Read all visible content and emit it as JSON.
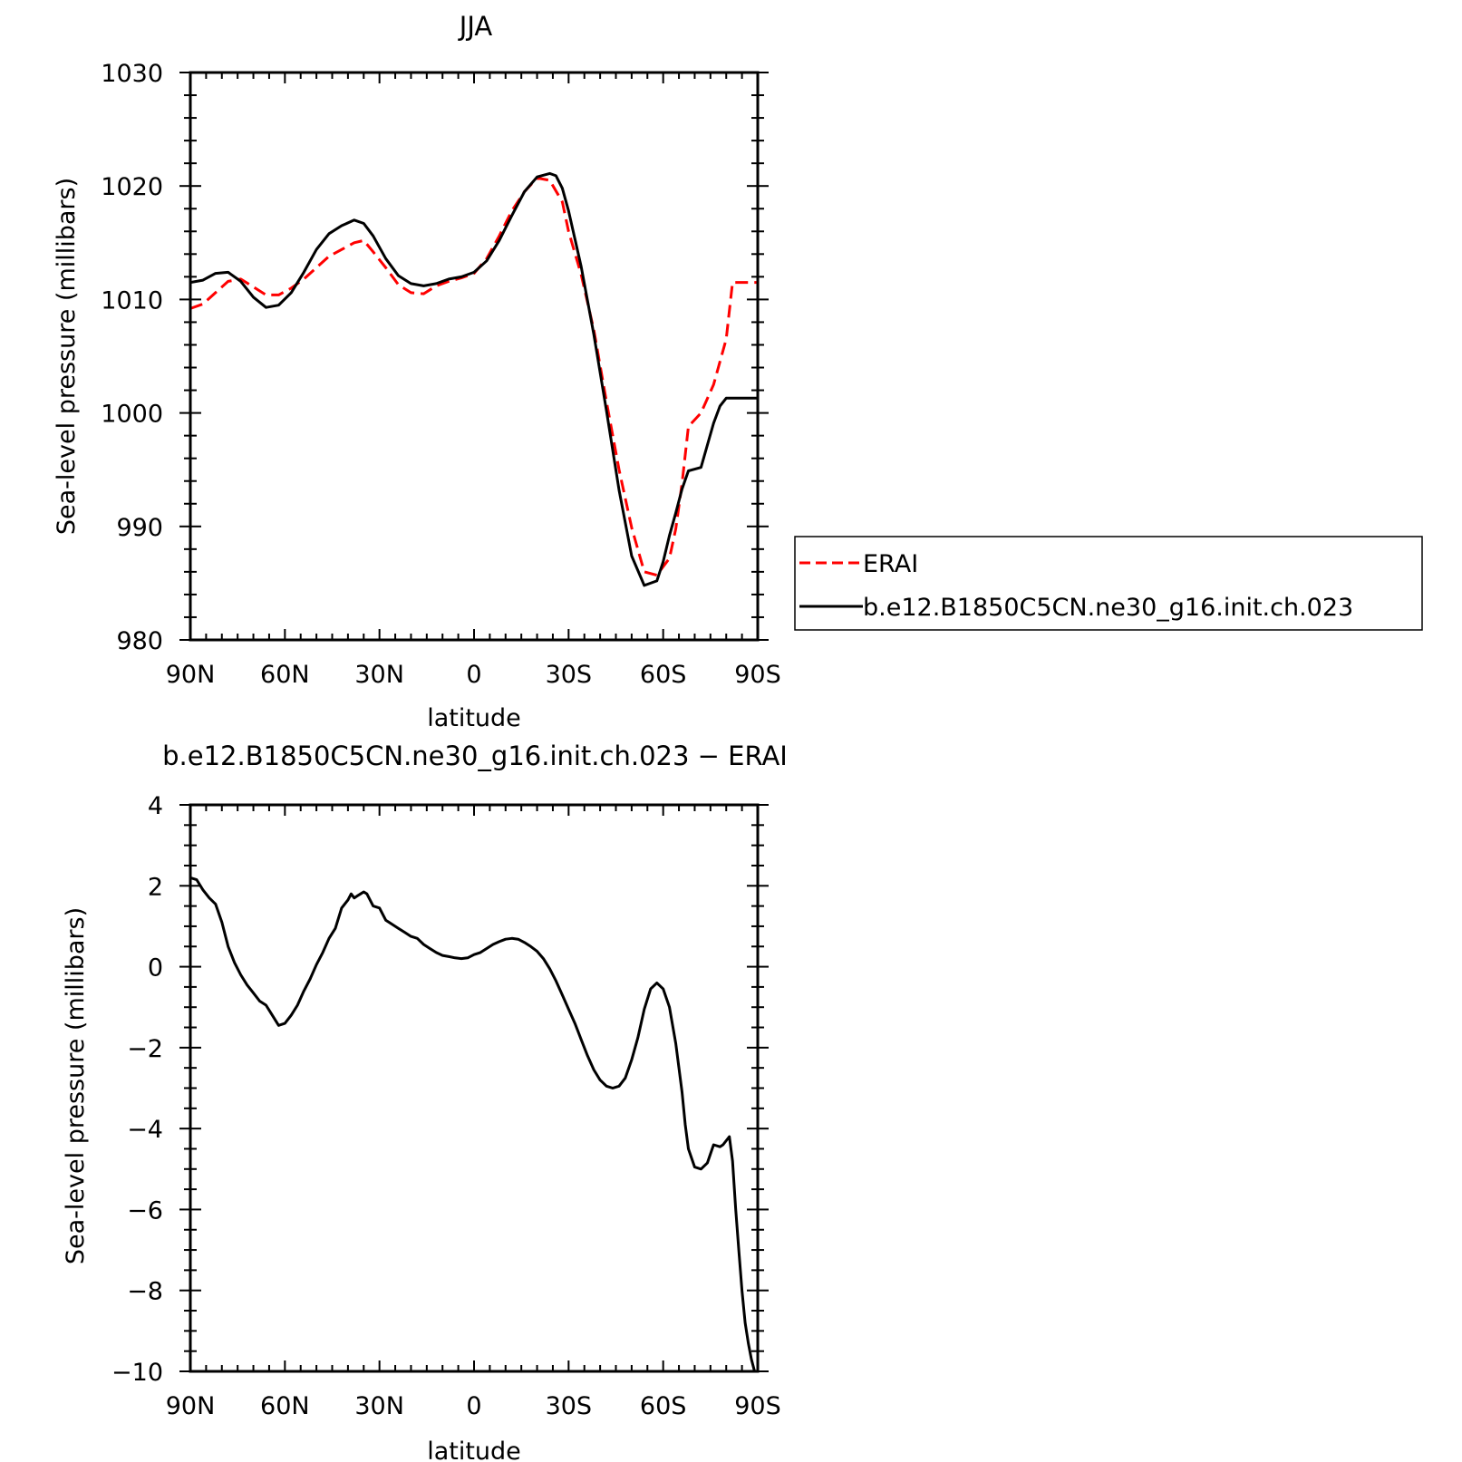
{
  "colors": {
    "ERAI": "#ff0000",
    "model": "#000000"
  },
  "legend": {
    "entries": [
      "ERAI",
      "b.e12.B1850C5CN.ne30_g16.init.ch.023"
    ],
    "placement": "right of top panel"
  },
  "chart_data": [
    {
      "type": "line",
      "title": "JJA",
      "xlabel": "latitude",
      "ylabel": "Sea-level pressure (millibars)",
      "xlim": [
        90,
        -90
      ],
      "ylim": [
        980,
        1030
      ],
      "xticks": [
        90,
        60,
        30,
        0,
        -30,
        -60,
        -90
      ],
      "xticklabels": [
        "90N",
        "60N",
        "30N",
        "0",
        "30S",
        "60S",
        "90S"
      ],
      "yticks": [
        980,
        990,
        1000,
        1010,
        1020,
        1030
      ],
      "yticklabels": [
        "980",
        "990",
        "1000",
        "1010",
        "1020",
        "1030"
      ],
      "series": [
        {
          "name": "ERAI",
          "style": "dashed",
          "x": [
            90,
            86,
            82,
            78,
            74,
            70,
            66,
            62,
            58,
            54,
            50,
            46,
            42,
            38,
            35,
            32,
            28,
            24,
            20,
            16,
            12,
            8,
            4,
            0,
            -4,
            -8,
            -12,
            -16,
            -20,
            -24,
            -28,
            -30,
            -34,
            -38,
            -42,
            -46,
            -50,
            -54,
            -58,
            -62,
            -64,
            -66,
            -68,
            -72,
            -76,
            -80,
            -82,
            -84,
            -86,
            -88,
            -90
          ],
          "y": [
            1009.2,
            1009.6,
            1010.6,
            1011.6,
            1011.8,
            1011.1,
            1010.4,
            1010.4,
            1011.0,
            1011.8,
            1012.8,
            1013.8,
            1014.4,
            1015.0,
            1015.2,
            1014.2,
            1012.8,
            1011.3,
            1010.6,
            1010.5,
            1011.2,
            1011.6,
            1011.9,
            1012.3,
            1013.6,
            1015.6,
            1017.8,
            1019.5,
            1020.7,
            1020.5,
            1018.6,
            1016.0,
            1012.2,
            1007.3,
            1001.0,
            995.0,
            989.9,
            986.0,
            985.7,
            987.2,
            989.8,
            993.8,
            998.8,
            1000.0,
            1002.5,
            1006.5,
            1011.5,
            1011.5,
            1011.5,
            1011.5,
            1011.5
          ]
        },
        {
          "name": "b.e12.B1850C5CN.ne30_g16.init.ch.023",
          "style": "solid",
          "x": [
            90,
            86,
            82,
            78,
            74,
            70,
            66,
            62,
            58,
            54,
            50,
            46,
            42,
            38,
            35,
            32,
            28,
            24,
            20,
            16,
            12,
            8,
            4,
            0,
            -4,
            -8,
            -12,
            -16,
            -20,
            -24,
            -26,
            -28,
            -30,
            -34,
            -38,
            -42,
            -46,
            -50,
            -54,
            -58,
            -60,
            -62,
            -64,
            -66,
            -68,
            -72,
            -76,
            -78,
            -80,
            -82,
            -84,
            -86,
            -88,
            -90
          ],
          "y": [
            1011.5,
            1011.7,
            1012.3,
            1012.4,
            1011.6,
            1010.2,
            1009.3,
            1009.5,
            1010.6,
            1012.4,
            1014.4,
            1015.8,
            1016.5,
            1017.0,
            1016.7,
            1015.6,
            1013.6,
            1012.1,
            1011.4,
            1011.2,
            1011.4,
            1011.8,
            1012.0,
            1012.4,
            1013.4,
            1015.2,
            1017.4,
            1019.5,
            1020.8,
            1021.1,
            1020.9,
            1019.8,
            1017.8,
            1012.9,
            1006.9,
            1000.2,
            993.2,
            987.4,
            984.8,
            985.2,
            986.9,
            989.2,
            991.2,
            993.3,
            994.9,
            995.2,
            999.1,
            1000.6,
            1001.3,
            1001.3,
            1001.3,
            1001.3,
            1001.3,
            1001.3
          ]
        }
      ]
    },
    {
      "type": "line",
      "title": "b.e12.B1850C5CN.ne30_g16.init.ch.023 − ERAI",
      "xlabel": "latitude",
      "ylabel": "Sea-level pressure (millibars)",
      "xlim": [
        90,
        -90
      ],
      "ylim": [
        -10,
        4
      ],
      "xticks": [
        90,
        60,
        30,
        0,
        -30,
        -60,
        -90
      ],
      "xticklabels": [
        "90N",
        "60N",
        "30N",
        "0",
        "30S",
        "60S",
        "90S"
      ],
      "yticks": [
        -10,
        -8,
        -6,
        -4,
        -2,
        0,
        2,
        4
      ],
      "yticklabels": [
        "−10",
        "−8",
        "−6",
        "−4",
        "−2",
        "0",
        "2",
        "4"
      ],
      "series": [
        {
          "style": "solid",
          "x": [
            90,
            88,
            86,
            84,
            82,
            80,
            78,
            76,
            74,
            72,
            70,
            68,
            66,
            64,
            62,
            60,
            58,
            56,
            54,
            52,
            50,
            48,
            46,
            44,
            42,
            40,
            39,
            38,
            37,
            36,
            35,
            34,
            32,
            30,
            28,
            26,
            24,
            22,
            20,
            18,
            16,
            14,
            12,
            10,
            8,
            6,
            4,
            2,
            0,
            -2,
            -4,
            -6,
            -8,
            -10,
            -12,
            -14,
            -16,
            -18,
            -20,
            -22,
            -24,
            -26,
            -28,
            -30,
            -32,
            -34,
            -36,
            -38,
            -40,
            -42,
            -44,
            -46,
            -48,
            -50,
            -52,
            -54,
            -56,
            -58,
            -60,
            -62,
            -64,
            -66,
            -67,
            -68,
            -70,
            -72,
            -74,
            -76,
            -78,
            -79,
            -80,
            -81,
            -82,
            -83,
            -84,
            -85,
            -86,
            -87,
            -88,
            -89,
            -90
          ],
          "y": [
            2.2,
            2.15,
            1.9,
            1.7,
            1.55,
            1.1,
            0.5,
            0.1,
            -0.2,
            -0.45,
            -0.65,
            -0.85,
            -0.95,
            -1.2,
            -1.45,
            -1.4,
            -1.2,
            -0.95,
            -0.6,
            -0.3,
            0.05,
            0.35,
            0.7,
            0.95,
            1.45,
            1.65,
            1.8,
            1.7,
            1.75,
            1.8,
            1.85,
            1.8,
            1.5,
            1.45,
            1.15,
            1.05,
            0.95,
            0.85,
            0.75,
            0.7,
            0.55,
            0.45,
            0.35,
            0.28,
            0.25,
            0.22,
            0.2,
            0.22,
            0.3,
            0.35,
            0.45,
            0.55,
            0.62,
            0.68,
            0.7,
            0.68,
            0.6,
            0.5,
            0.38,
            0.2,
            -0.05,
            -0.35,
            -0.7,
            -1.05,
            -1.4,
            -1.8,
            -2.2,
            -2.55,
            -2.8,
            -2.95,
            -3.0,
            -2.95,
            -2.75,
            -2.3,
            -1.75,
            -1.05,
            -0.55,
            -0.4,
            -0.55,
            -1.0,
            -1.9,
            -3.1,
            -3.9,
            -4.5,
            -4.95,
            -5.0,
            -4.85,
            -4.4,
            -4.45,
            -4.4,
            -4.3,
            -4.2,
            -4.8,
            -6.0,
            -7.0,
            -8.0,
            -8.8,
            -9.3,
            -9.7,
            -10.0,
            -10.0
          ]
        }
      ]
    }
  ]
}
